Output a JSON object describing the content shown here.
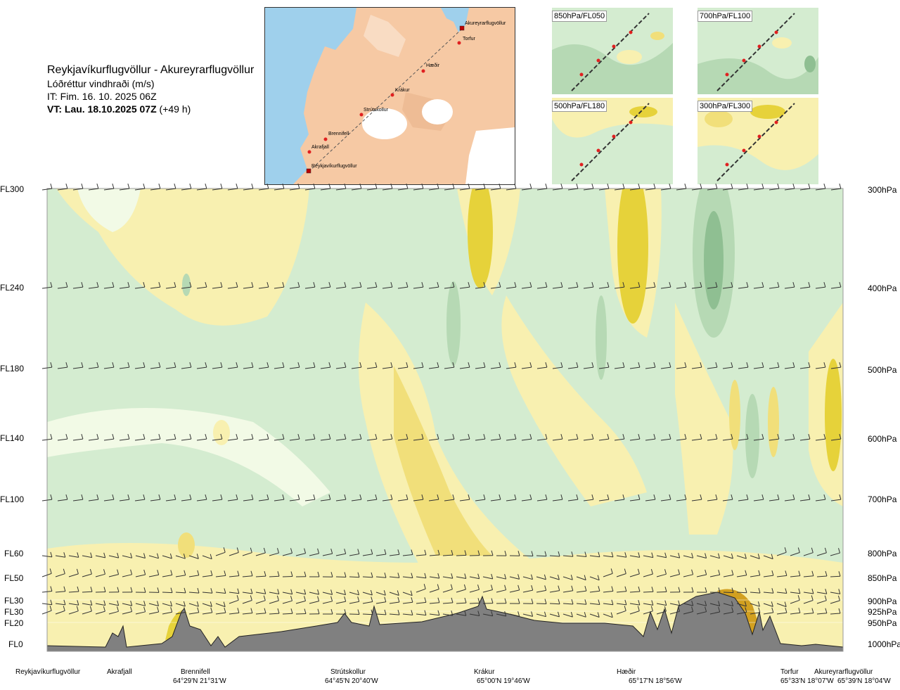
{
  "header": {
    "route_title": "Reykjavíkurflugvöllur - Akureyrarflugvöllur",
    "subtitle": "Lóðréttur vindhraði (m/s)",
    "issue_time": "IT: Fim. 16. 10. 2025 06Z",
    "valid_time_bold": "VT: Lau. 18.10.2025 07Z",
    "valid_time_offset": "(+49 h)"
  },
  "route_map": {
    "waypoints": [
      "Akureyrarflugvöllur",
      "Torfur",
      "Hæðir",
      "Krákur",
      "Strútskollur",
      "Brennifell",
      "Akrafjall",
      "Reykjavíkurflugvöllur"
    ],
    "colors": {
      "land": "#f6c9a4",
      "sea": "#9fd0ec",
      "ice": "#ffffff",
      "route": "#555555",
      "waypoint": "#e02020"
    }
  },
  "level_maps": [
    {
      "label": "850hPa/FL050"
    },
    {
      "label": "700hPa/FL100"
    },
    {
      "label": "500hPa/FL180"
    },
    {
      "label": "300hPa/FL300"
    }
  ],
  "cross_section": {
    "flight_levels": [
      "FL300",
      "FL240",
      "FL180",
      "FL140",
      "FL100",
      "FL60",
      "FL50",
      "FL30",
      "FL30",
      "FL20",
      "FL0"
    ],
    "pressure_levels": [
      "300hPa",
      "400hPa",
      "500hPa",
      "600hPa",
      "700hPa",
      "800hPa",
      "850hPa",
      "900hPa",
      "925hPa",
      "950hPa",
      "1000hPa"
    ],
    "colors": {
      "weak_down": "#d4ecd0",
      "mid_down": "#b6d9b4",
      "strong_down": "#8fbf92",
      "near_zero": "#f2fae6",
      "weak_up": "#f8f0b0",
      "mid_up": "#f1df7a",
      "strong_up": "#e6d23a",
      "terrain": "#808080"
    }
  },
  "locations": [
    {
      "name": "Reykjavíkurflugvöllur",
      "coord": ""
    },
    {
      "name": "Akrafjall",
      "coord": ""
    },
    {
      "name": "Brennifell",
      "coord": "64°29'N 21°31'W"
    },
    {
      "name": "Strútskollur",
      "coord": "64°45'N 20°40'W"
    },
    {
      "name": "Krákur",
      "coord": "65°00'N 19°46'W"
    },
    {
      "name": "Hæðir",
      "coord": "65°17'N 18°56'W"
    },
    {
      "name": "Torfur",
      "coord": "65°33'N 18°07'W"
    },
    {
      "name": "Akureyrarflugvöllur",
      "coord": "65°39'N 18°04'W"
    }
  ]
}
